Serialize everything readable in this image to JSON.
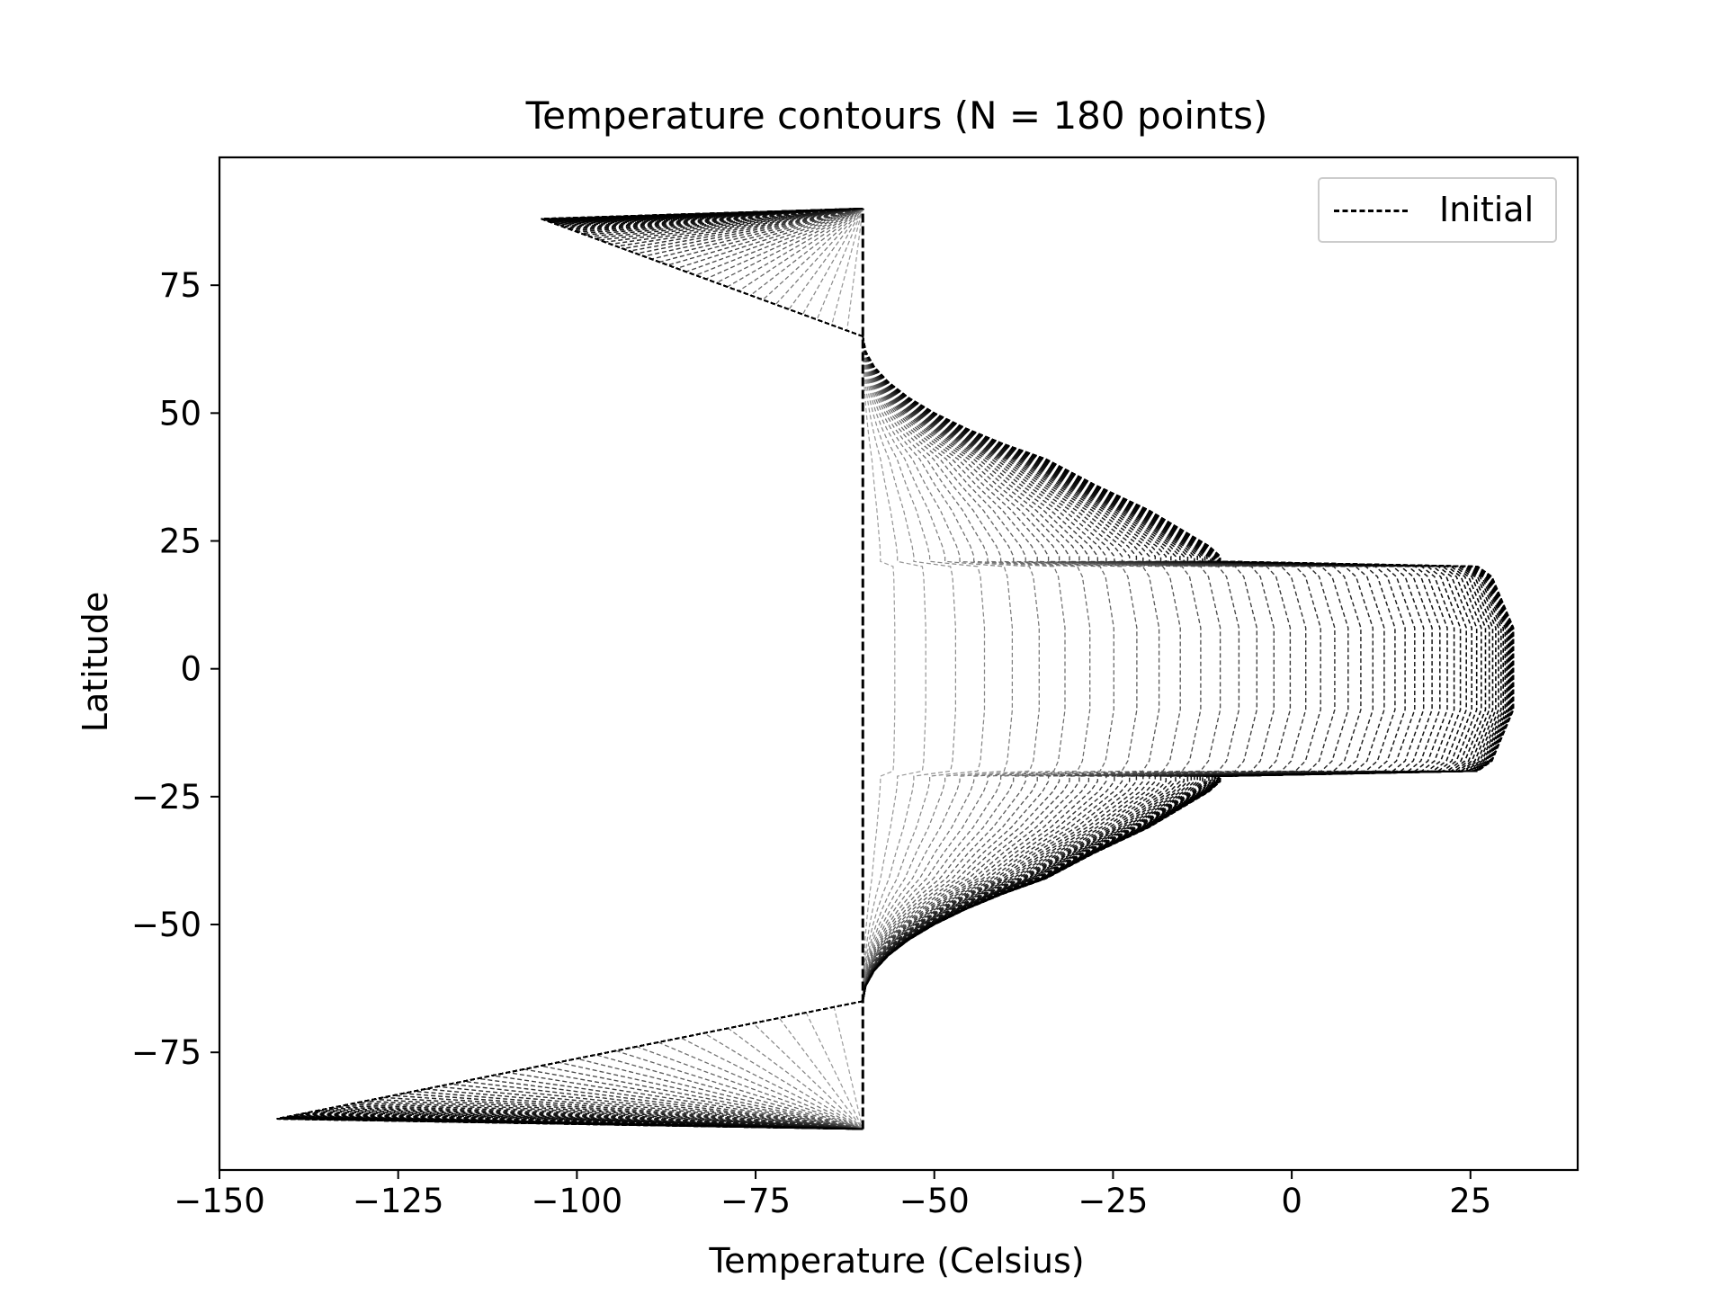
{
  "chart_data": {
    "type": "line",
    "title": "Temperature contours (N = 180 points)",
    "xlabel": "Temperature (Celsius)",
    "ylabel": "Latitude",
    "xlim": [
      -150,
      40
    ],
    "ylim": [
      -98,
      100
    ],
    "xticks": [
      -150,
      -125,
      -100,
      -75,
      -50,
      -25,
      0,
      25
    ],
    "xtick_labels": [
      "−150",
      "−125",
      "−100",
      "−75",
      "−50",
      "−25",
      "0",
      "25"
    ],
    "yticks": [
      -75,
      -50,
      -25,
      0,
      25,
      50,
      75
    ],
    "ytick_labels": [
      "−75",
      "−50",
      "−25",
      "0",
      "25",
      "50",
      "75"
    ],
    "grid": false,
    "legend": {
      "position": "top-right",
      "entries": [
        "Initial"
      ]
    },
    "initial_line": {
      "name": "Initial",
      "x": [
        -60,
        -60
      ],
      "y": [
        -90,
        90
      ],
      "style": "dashed",
      "color": "#000000"
    },
    "contours": {
      "count": 60,
      "color_start": "#a6a6a6",
      "color_end": "#000000",
      "style": "dashed",
      "final_shape": {
        "x": [
          -60,
          -59.6,
          -58.4,
          -56.4,
          -53.6,
          -50.0,
          -45.6,
          -40.4,
          -34.4,
          -27.6,
          -20.0,
          -11.6,
          -10.0,
          -10.0,
          26.0,
          28.0,
          31.0,
          31.0,
          28.0,
          26.0,
          -10.0,
          -10.0,
          -11.6,
          -20.0,
          -27.6,
          -34.4,
          -40.4,
          -45.6,
          -50.0,
          -53.6,
          -56.4,
          -58.4,
          -59.6,
          -60
        ],
        "y": [
          65,
          62,
          59,
          56,
          53,
          50,
          47,
          44,
          41,
          36,
          31,
          24,
          22,
          21,
          20,
          18,
          8,
          -8,
          -18,
          -20,
          -21,
          -22,
          -24,
          -31,
          -36,
          -41,
          -44,
          -47,
          -50,
          -53,
          -56,
          -59,
          -62,
          -65
        ]
      },
      "north_tip": {
        "x": -105,
        "y": 88
      },
      "south_tip": {
        "x": -142,
        "y": -88
      }
    }
  }
}
